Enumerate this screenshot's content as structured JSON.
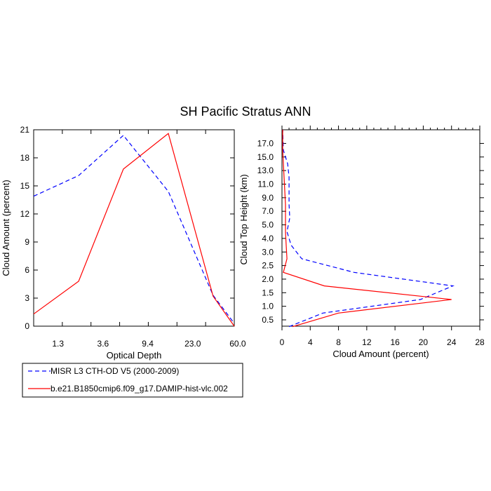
{
  "title": "SH Pacific Stratus ANN",
  "colors": {
    "misr": "#0000ff",
    "model": "#ff0000",
    "axis": "#000000"
  },
  "legend": [
    {
      "name": "MISR L3 CTH-OD V5 (2000-2009)",
      "color": "#0000ff",
      "dash": "dashed"
    },
    {
      "name": "b.e21.B1850cmip6.f09_g17.DAMIP-hist-vlc.002",
      "color": "#ff0000",
      "dash": "solid"
    }
  ],
  "chart_data": [
    {
      "type": "line",
      "xlabel": "Optical Depth",
      "ylabel": "Cloud Amount (percent)",
      "ylim": [
        0,
        21
      ],
      "xlim": [
        0,
        7
      ],
      "yticks": [
        0,
        3,
        6,
        9,
        12,
        15,
        18,
        21
      ],
      "xtick_positions": [
        1,
        2,
        3,
        4,
        5,
        6
      ],
      "xtick_labels": [
        "1.3",
        "3.6",
        "9.4",
        "23.0",
        "60.0"
      ],
      "xtick_label_positions": [
        0.85,
        2.42,
        3.98,
        5.55,
        7.12
      ],
      "x": [
        0.0,
        1.57,
        3.13,
        4.7,
        6.26,
        7.0
      ],
      "series": [
        {
          "name": "MISR L3 CTH-OD V5 (2000-2009)",
          "values": [
            13.9,
            16.1,
            20.4,
            14.4,
            3.3,
            0.3
          ]
        },
        {
          "name": "b.e21.B1850cmip6.f09_g17.DAMIP-hist-vlc.002",
          "values": [
            1.3,
            4.8,
            16.8,
            20.6,
            3.2,
            0.0
          ]
        }
      ]
    },
    {
      "type": "line",
      "xlabel": "Cloud Amount (percent)",
      "ylabel": "Cloud Top Height (km)",
      "xlim": [
        0,
        28
      ],
      "xticks": [
        0,
        4,
        8,
        12,
        16,
        20,
        24,
        28
      ],
      "ytick_labels": [
        "0.5",
        "1.0",
        "1.5",
        "2.0",
        "2.5",
        "3.0",
        "4.0",
        "5.0",
        "7.0",
        "9.0",
        "11.0",
        "13.0",
        "15.0",
        "17.0"
      ],
      "series": [
        {
          "name": "MISR L3 CTH-OD V5 (2000-2009)",
          "values": [
            1.0,
            5.8,
            19.6,
            24.2,
            10.2,
            2.8,
            1.3,
            0.7,
            1.1,
            1.0,
            1.0,
            1.0,
            0.8,
            0.2,
            0.1
          ]
        },
        {
          "name": "b.e21.B1850cmip6.f09_g17.DAMIP-hist-vlc.002",
          "values": [
            1.5,
            8.0,
            24.0,
            6.0,
            0.2,
            0.7,
            0.6,
            0.5,
            0.5,
            0.5,
            0.4,
            0.3,
            0.2,
            0.1,
            0.1
          ]
        }
      ]
    }
  ]
}
